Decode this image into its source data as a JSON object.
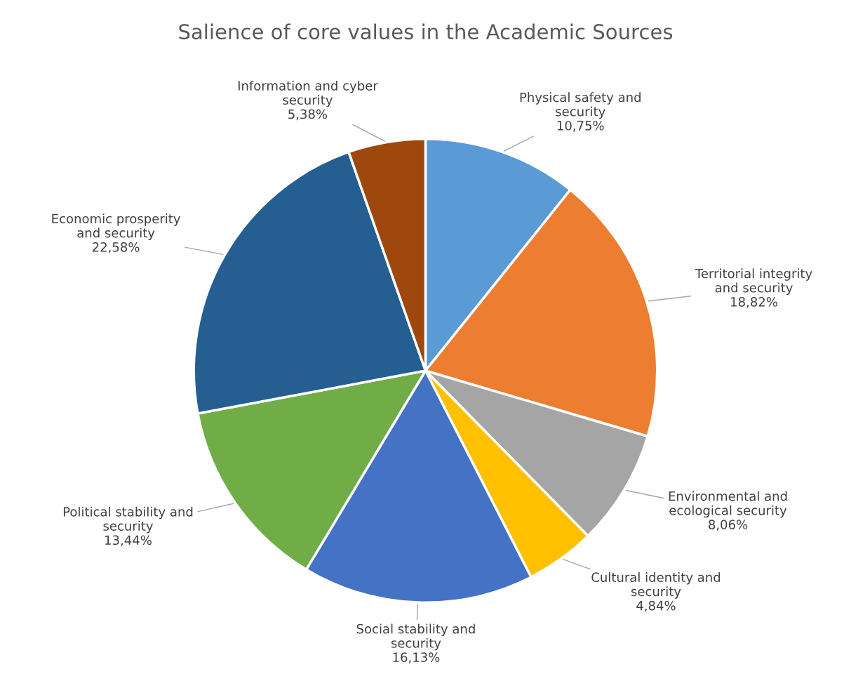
{
  "chart_data": {
    "type": "pie",
    "title": "Salience of core values in the Academic Sources",
    "categories": [
      "Physical safety and\nsecurity",
      "Territorial integrity\nand security",
      "Environmental and\necological security",
      "Cultural identity and\nsecurity",
      "Social stability and\nsecurity",
      "Political stability and\nsecurity",
      "Economic prosperity\nand security",
      "Information and cyber\nsecurity"
    ],
    "values": [
      10.75,
      18.82,
      8.06,
      4.84,
      16.13,
      13.44,
      22.58,
      5.38
    ],
    "value_labels": [
      "10,75%",
      "18,82%",
      "8,06%",
      "4,84%",
      "16,13%",
      "13,44%",
      "22,58%",
      "5,38%"
    ],
    "colors": [
      "#5b9bd5",
      "#ed7d31",
      "#a5a5a5",
      "#ffc000",
      "#4472c4",
      "#70ad47",
      "#255e91",
      "#9e480e"
    ]
  }
}
